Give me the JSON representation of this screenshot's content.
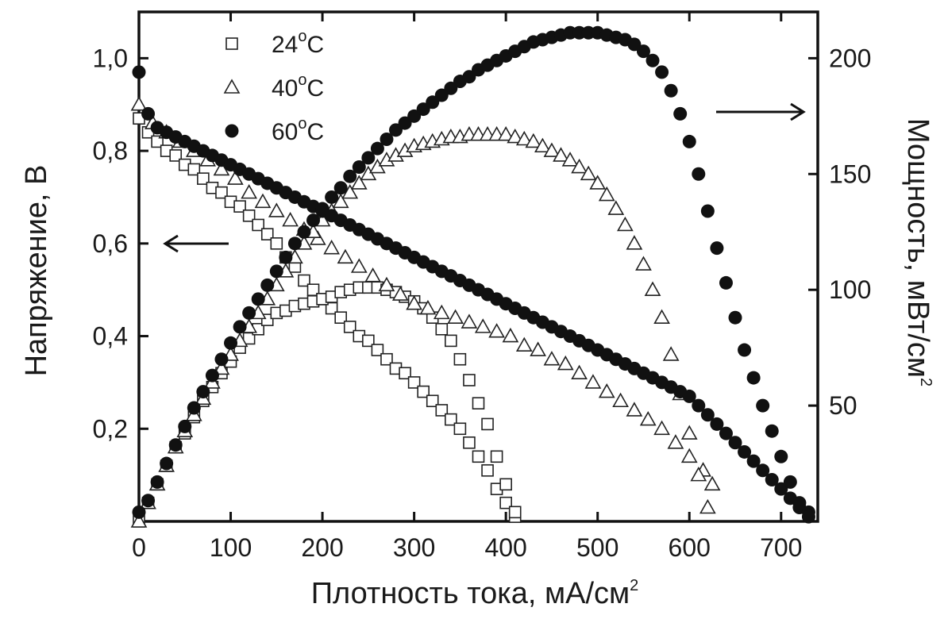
{
  "chart_data": {
    "type": "scatter",
    "x_axis": {
      "label": "Плотность тока, мА/см",
      "label_sup": "2",
      "range": [
        0,
        740
      ],
      "ticks": [
        0,
        100,
        200,
        300,
        400,
        500,
        600,
        700
      ],
      "tick_labels": [
        "0",
        "100",
        "200",
        "300",
        "400",
        "500",
        "600",
        "700"
      ]
    },
    "y_axis_left": {
      "label": "Напряжение, В",
      "range": [
        0,
        1.1
      ],
      "ticks": [
        0.2,
        0.4,
        0.6,
        0.8,
        1.0
      ],
      "tick_labels": [
        "0,2",
        "0,4",
        "0,6",
        "0,8",
        "1,0"
      ]
    },
    "y_axis_right": {
      "label": "Мощность, мВт/см",
      "label_sup": "2",
      "range": [
        0,
        220
      ],
      "ticks": [
        50,
        100,
        150,
        200
      ],
      "tick_labels": [
        "50",
        "100",
        "150",
        "200"
      ]
    },
    "legend": {
      "placement": "top-left",
      "entries": [
        {
          "text": "24",
          "sup": "o",
          "unit": "C",
          "marker": "open-square"
        },
        {
          "text": "40",
          "sup": "o",
          "unit": "C",
          "marker": "open-triangle"
        },
        {
          "text": "60",
          "sup": "o",
          "unit": "C",
          "marker": "filled-circle"
        }
      ]
    },
    "annotations": [
      {
        "arrow": "left",
        "points_to": "voltage axis"
      },
      {
        "arrow": "right",
        "points_to": "power axis"
      }
    ],
    "series": [
      {
        "marker": "open-square",
        "axis": "left",
        "x": [
          0,
          10,
          20,
          30,
          40,
          50,
          60,
          70,
          80,
          90,
          100,
          110,
          120,
          130,
          140,
          150,
          160,
          170,
          180,
          190,
          200,
          210,
          220,
          230,
          240,
          250,
          260,
          270,
          280,
          290,
          300,
          310,
          320,
          330,
          340,
          350,
          360,
          370,
          380,
          390,
          400,
          410
        ],
        "y": [
          0.87,
          0.84,
          0.82,
          0.8,
          0.79,
          0.77,
          0.76,
          0.74,
          0.72,
          0.71,
          0.69,
          0.68,
          0.66,
          0.64,
          0.62,
          0.6,
          0.57,
          0.55,
          0.52,
          0.5,
          0.48,
          0.46,
          0.44,
          0.42,
          0.4,
          0.39,
          0.37,
          0.35,
          0.33,
          0.32,
          0.3,
          0.28,
          0.26,
          0.24,
          0.22,
          0.2,
          0.17,
          0.14,
          0.11,
          0.07,
          0.04,
          0.01
        ]
      },
      {
        "marker": "open-square",
        "axis": "right",
        "x": [
          0,
          10,
          20,
          30,
          40,
          50,
          60,
          70,
          80,
          90,
          100,
          110,
          120,
          130,
          140,
          150,
          160,
          170,
          180,
          190,
          200,
          210,
          220,
          230,
          240,
          250,
          260,
          270,
          280,
          290,
          300,
          310,
          320,
          330,
          340,
          350,
          360,
          370,
          380,
          390,
          400,
          410
        ],
        "y": [
          0,
          8,
          16,
          24,
          32,
          38,
          45,
          52,
          58,
          64,
          69,
          75,
          79,
          83,
          87,
          90,
          91,
          93,
          94,
          95,
          96,
          97,
          99,
          100,
          101,
          101,
          101,
          100,
          99,
          97,
          95,
          92,
          88,
          83,
          78,
          70,
          61,
          51,
          42,
          28,
          16,
          4
        ]
      },
      {
        "marker": "open-triangle",
        "axis": "left",
        "x": [
          0,
          15,
          30,
          45,
          60,
          75,
          90,
          105,
          120,
          135,
          150,
          165,
          180,
          195,
          210,
          225,
          240,
          255,
          270,
          285,
          300,
          315,
          330,
          345,
          360,
          375,
          390,
          405,
          420,
          435,
          450,
          465,
          480,
          495,
          510,
          525,
          540,
          555,
          570,
          585,
          600,
          615,
          625
        ],
        "y": [
          0.9,
          0.86,
          0.84,
          0.82,
          0.8,
          0.78,
          0.76,
          0.74,
          0.71,
          0.69,
          0.67,
          0.65,
          0.63,
          0.61,
          0.59,
          0.57,
          0.55,
          0.53,
          0.51,
          0.49,
          0.47,
          0.46,
          0.45,
          0.44,
          0.43,
          0.42,
          0.41,
          0.4,
          0.38,
          0.37,
          0.35,
          0.34,
          0.32,
          0.3,
          0.28,
          0.26,
          0.24,
          0.22,
          0.2,
          0.17,
          0.14,
          0.11,
          0.08
        ]
      },
      {
        "marker": "open-triangle",
        "axis": "right",
        "x": [
          0,
          10,
          20,
          30,
          40,
          50,
          60,
          70,
          80,
          90,
          100,
          110,
          120,
          130,
          140,
          150,
          160,
          170,
          180,
          190,
          200,
          210,
          220,
          230,
          240,
          250,
          260,
          270,
          280,
          290,
          300,
          310,
          320,
          330,
          340,
          350,
          360,
          370,
          380,
          390,
          400,
          410,
          420,
          430,
          440,
          450,
          460,
          470,
          480,
          490,
          500,
          510,
          520,
          530,
          540,
          550,
          560,
          570,
          580,
          590,
          600,
          610,
          620
        ],
        "y": [
          0,
          8,
          16,
          24,
          32,
          39,
          46,
          53,
          60,
          66,
          72,
          78,
          84,
          90,
          96,
          102,
          108,
          114,
          120,
          125,
          130,
          134,
          138,
          142,
          146,
          150,
          153,
          156,
          158,
          160,
          162,
          163,
          164,
          165,
          166,
          166,
          167,
          167,
          167,
          167,
          167,
          166,
          165,
          164,
          162,
          160,
          158,
          156,
          153,
          150,
          146,
          141,
          135,
          128,
          120,
          111,
          100,
          88,
          72,
          55,
          38,
          20,
          6
        ]
      },
      {
        "marker": "filled-circle",
        "axis": "left",
        "x": [
          0,
          10,
          20,
          30,
          40,
          50,
          60,
          70,
          80,
          90,
          100,
          110,
          120,
          130,
          140,
          150,
          160,
          170,
          180,
          190,
          200,
          210,
          220,
          230,
          240,
          250,
          260,
          270,
          280,
          290,
          300,
          310,
          320,
          330,
          340,
          350,
          360,
          370,
          380,
          390,
          400,
          410,
          420,
          430,
          440,
          450,
          460,
          470,
          480,
          490,
          500,
          510,
          520,
          530,
          540,
          550,
          560,
          570,
          580,
          590,
          600,
          610,
          620,
          630,
          640,
          650,
          660,
          670,
          680,
          690,
          700,
          710,
          720,
          730
        ],
        "y": [
          0.97,
          0.88,
          0.85,
          0.84,
          0.83,
          0.82,
          0.81,
          0.8,
          0.79,
          0.78,
          0.77,
          0.76,
          0.75,
          0.74,
          0.73,
          0.72,
          0.71,
          0.7,
          0.69,
          0.68,
          0.67,
          0.66,
          0.65,
          0.64,
          0.63,
          0.62,
          0.61,
          0.6,
          0.59,
          0.58,
          0.57,
          0.56,
          0.55,
          0.54,
          0.53,
          0.52,
          0.51,
          0.5,
          0.49,
          0.48,
          0.47,
          0.46,
          0.45,
          0.44,
          0.43,
          0.42,
          0.41,
          0.4,
          0.39,
          0.38,
          0.37,
          0.36,
          0.35,
          0.34,
          0.33,
          0.32,
          0.31,
          0.3,
          0.29,
          0.28,
          0.27,
          0.25,
          0.23,
          0.21,
          0.19,
          0.17,
          0.15,
          0.13,
          0.11,
          0.09,
          0.07,
          0.05,
          0.03,
          0.02
        ]
      },
      {
        "marker": "filled-circle",
        "axis": "right",
        "x": [
          0,
          10,
          20,
          30,
          40,
          50,
          60,
          70,
          80,
          90,
          100,
          110,
          120,
          130,
          140,
          150,
          160,
          170,
          180,
          190,
          200,
          210,
          220,
          230,
          240,
          250,
          260,
          270,
          280,
          290,
          300,
          310,
          320,
          330,
          340,
          350,
          360,
          370,
          380,
          390,
          400,
          410,
          420,
          430,
          440,
          450,
          460,
          470,
          480,
          490,
          500,
          510,
          520,
          530,
          540,
          550,
          560,
          570,
          580,
          590,
          600,
          610,
          620,
          630,
          640,
          650,
          660,
          670,
          680,
          690,
          700,
          710,
          720,
          730
        ],
        "y": [
          4,
          9,
          17,
          25,
          33,
          41,
          49,
          56,
          63,
          70,
          77,
          84,
          90,
          96,
          102,
          108,
          114,
          120,
          125,
          130,
          135,
          140,
          144,
          149,
          153,
          157,
          161,
          165,
          169,
          172,
          175,
          178,
          181,
          184,
          187,
          190,
          192,
          195,
          197,
          199,
          201,
          203,
          205,
          207,
          208,
          209,
          210,
          211,
          211,
          211,
          211,
          210,
          209,
          208,
          206,
          203,
          199,
          194,
          186,
          176,
          164,
          150,
          134,
          118,
          103,
          88,
          74,
          62,
          50,
          39,
          28,
          17,
          8,
          2
        ]
      }
    ]
  }
}
